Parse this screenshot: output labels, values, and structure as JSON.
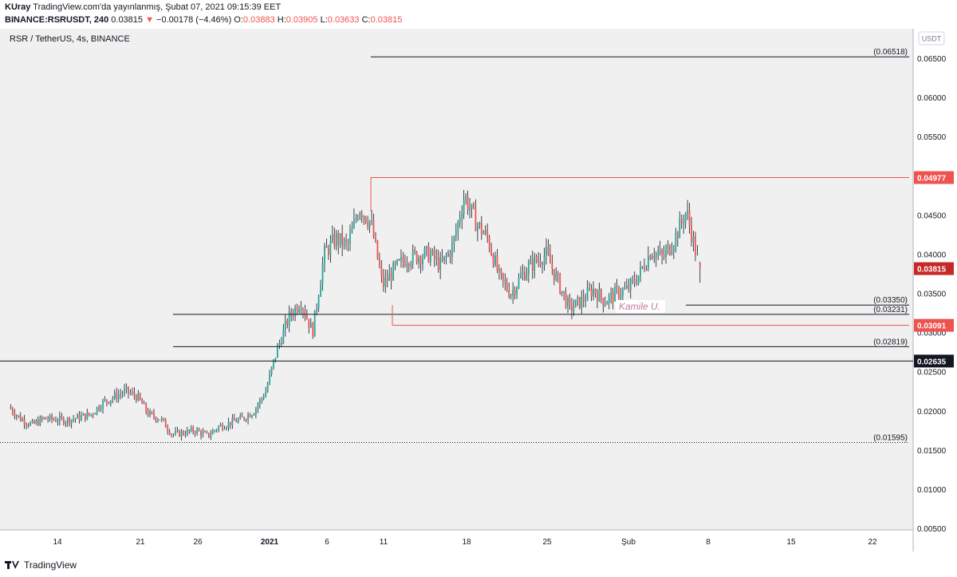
{
  "header": {
    "author": "KUray",
    "published": "TradingView.com'da yayınlanmış, Şubat 07, 2021 09:15:39 EET",
    "symbol": "BINANCE:RSRUSDT, 240",
    "last": "0.03815",
    "change_arrow": "▼",
    "change": "−0.00178 (−4.46%)",
    "o_label": "O:",
    "o_value": "0.03883",
    "h_label": "H:",
    "h_value": "0.03905",
    "l_label": "L:",
    "l_value": "0.03633",
    "c_label": "C:",
    "c_value": "0.03815"
  },
  "chart_title": "RSR / TetherUS, 4s, BINANCE",
  "currency_badge": "USDT",
  "watermark": "Kamile U.",
  "footer": {
    "brand": "TradingView"
  },
  "colors": {
    "up": "#26a69a",
    "down": "#ef5350",
    "level_red": "#ef5350",
    "level_black": "#131722",
    "pane_bg": "#f0f0f0"
  },
  "chart_data": {
    "type": "candlestick",
    "title": "RSR / TetherUS, 4s, BINANCE",
    "ylim": [
      0.003,
      0.068
    ],
    "y_ticks": [
      "0.06500",
      "0.06000",
      "0.05500",
      "0.05000",
      "0.04500",
      "0.04000",
      "0.03500",
      "0.03000",
      "0.02500",
      "0.02000",
      "0.01500",
      "0.01000",
      "0.00500"
    ],
    "x_ticks": [
      "14",
      "21",
      "26",
      "2021",
      "6",
      "11",
      "18",
      "25",
      "Şub",
      "8",
      "15",
      "22"
    ],
    "path_points": [
      [
        "2020-12-10",
        0.0205
      ],
      [
        "2020-12-11",
        0.019
      ],
      [
        "2020-12-12",
        0.0182
      ],
      [
        "2020-12-13",
        0.019
      ],
      [
        "2020-12-15",
        0.0188
      ],
      [
        "2020-12-17",
        0.0195
      ],
      [
        "2020-12-18",
        0.021
      ],
      [
        "2020-12-19",
        0.0218
      ],
      [
        "2020-12-20",
        0.0225
      ],
      [
        "2020-12-21",
        0.0218
      ],
      [
        "2020-12-22",
        0.0195
      ],
      [
        "2020-12-23",
        0.019
      ],
      [
        "2020-12-24",
        0.017
      ],
      [
        "2020-12-25",
        0.0172
      ],
      [
        "2020-12-26",
        0.0175
      ],
      [
        "2020-12-27",
        0.0168
      ],
      [
        "2020-12-28",
        0.018
      ],
      [
        "2020-12-29",
        0.0185
      ],
      [
        "2020-12-30",
        0.019
      ],
      [
        "2020-12-31",
        0.02
      ],
      [
        "2021-01-01",
        0.0225
      ],
      [
        "2021-01-02",
        0.028
      ],
      [
        "2021-01-03",
        0.032
      ],
      [
        "2021-01-04",
        0.034
      ],
      [
        "2021-01-05",
        0.03
      ],
      [
        "2021-01-06",
        0.04
      ],
      [
        "2021-01-07",
        0.042
      ],
      [
        "2021-01-08",
        0.041
      ],
      [
        "2021-01-09",
        0.046
      ],
      [
        "2021-01-10",
        0.044
      ],
      [
        "2021-01-11",
        0.036
      ],
      [
        "2021-01-12",
        0.038
      ],
      [
        "2021-01-13",
        0.0395
      ],
      [
        "2021-01-15",
        0.04
      ],
      [
        "2021-01-16",
        0.0385
      ],
      [
        "2021-01-17",
        0.041
      ],
      [
        "2021-01-18",
        0.0475
      ],
      [
        "2021-01-19",
        0.044
      ],
      [
        "2021-01-20",
        0.042
      ],
      [
        "2021-01-21",
        0.037
      ],
      [
        "2021-01-22",
        0.035
      ],
      [
        "2021-01-23",
        0.0375
      ],
      [
        "2021-01-24",
        0.039
      ],
      [
        "2021-01-25",
        0.04
      ],
      [
        "2021-01-26",
        0.0365
      ],
      [
        "2021-01-27",
        0.033
      ],
      [
        "2021-01-28",
        0.034
      ],
      [
        "2021-01-29",
        0.0355
      ],
      [
        "2021-01-30",
        0.034
      ],
      [
        "2021-01-31",
        0.035
      ],
      [
        "2021-02-01",
        0.0355
      ],
      [
        "2021-02-02",
        0.0375
      ],
      [
        "2021-02-03",
        0.0405
      ],
      [
        "2021-02-04",
        0.0395
      ],
      [
        "2021-02-05",
        0.042
      ],
      [
        "2021-02-06",
        0.0455
      ],
      [
        "2021-02-07",
        0.039
      ],
      [
        "2021-02-07",
        0.03815
      ]
    ],
    "horizontal_levels": [
      {
        "value": 0.06518,
        "label": "(0.06518)",
        "color": "black"
      },
      {
        "value": 0.04977,
        "label": "0.04977",
        "color": "red"
      },
      {
        "value": 0.0335,
        "label": "(0.03350)",
        "color": "black"
      },
      {
        "value": 0.03231,
        "label": "(0.03231)",
        "color": "black"
      },
      {
        "value": 0.03091,
        "label": "0.03091",
        "color": "red"
      },
      {
        "value": 0.02819,
        "label": "(0.02819)",
        "color": "black"
      },
      {
        "value": 0.02635,
        "label": "0.02635",
        "color": "black"
      },
      {
        "value": 0.01595,
        "label": "(0.01595)",
        "color": "black",
        "dotted": true
      }
    ],
    "last_price": {
      "value": 0.03815,
      "label": "0.03815"
    },
    "legend": "none"
  }
}
